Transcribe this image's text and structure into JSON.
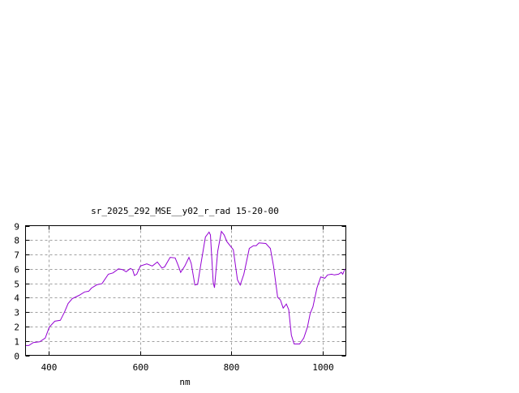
{
  "chart_data": {
    "type": "line",
    "title": "sr_2025_292_MSE__y02_r_rad 15-20-00",
    "xlabel": "nm",
    "ylabel": "",
    "xlim": [
      350,
      1050
    ],
    "ylim": [
      0,
      9
    ],
    "xticks": [
      400,
      600,
      800,
      1000
    ],
    "yticks": [
      0,
      1,
      2,
      3,
      4,
      5,
      6,
      7,
      8,
      9
    ],
    "grid": true,
    "line_color": "#9400d3",
    "series": [
      {
        "x": [
          350,
          357,
          367,
          381,
          393,
          402,
          414,
          426,
          435,
          443,
          452,
          467,
          479,
          488,
          494,
          506,
          517,
          531,
          541,
          553,
          562,
          570,
          579,
          584,
          588,
          593,
          601,
          615,
          627,
          638,
          648,
          654,
          666,
          677,
          683,
          689,
          698,
          707,
          712,
          720,
          726,
          733,
          743,
          751,
          754,
          760,
          763,
          770,
          778,
          784,
          790,
          804,
          813,
          819,
          827,
          839,
          848,
          854,
          860,
          875,
          885,
          892,
          901,
          907,
          913,
          920,
          925,
          931,
          937,
          949,
          958,
          966,
          972,
          978,
          987,
          995,
          1004,
          1010,
          1019,
          1025,
          1034,
          1040,
          1043,
          1048
        ],
        "y": [
          0.68,
          0.68,
          0.89,
          0.94,
          1.2,
          1.96,
          2.37,
          2.43,
          3.0,
          3.6,
          3.94,
          4.16,
          4.4,
          4.45,
          4.67,
          4.9,
          4.97,
          5.63,
          5.72,
          6.0,
          5.95,
          5.8,
          6.03,
          5.95,
          5.54,
          5.63,
          6.2,
          6.35,
          6.2,
          6.48,
          6.06,
          6.14,
          6.8,
          6.76,
          6.29,
          5.76,
          6.2,
          6.8,
          6.38,
          4.88,
          4.92,
          6.29,
          8.21,
          8.55,
          8.36,
          5.07,
          4.69,
          7.23,
          8.6,
          8.36,
          7.89,
          7.33,
          5.25,
          4.88,
          5.63,
          7.42,
          7.61,
          7.61,
          7.8,
          7.76,
          7.42,
          6.2,
          4.03,
          3.84,
          3.28,
          3.56,
          3.18,
          1.4,
          0.79,
          0.79,
          1.2,
          1.96,
          2.9,
          3.37,
          4.69,
          5.44,
          5.35,
          5.58,
          5.63,
          5.58,
          5.63,
          5.76,
          5.63,
          6.0
        ]
      }
    ]
  }
}
